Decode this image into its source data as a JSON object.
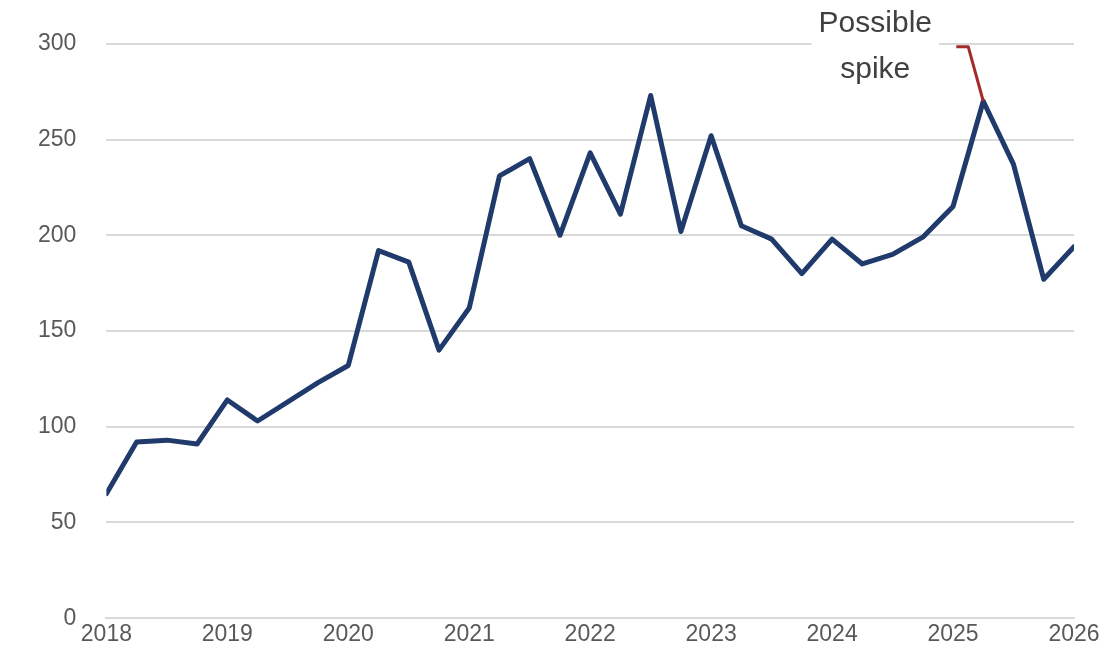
{
  "chart_data": {
    "type": "line",
    "x": [
      2018,
      2018.25,
      2018.5,
      2018.75,
      2019,
      2019.25,
      2019.5,
      2019.75,
      2020,
      2020.25,
      2020.5,
      2020.75,
      2021,
      2021.25,
      2021.5,
      2021.75,
      2022,
      2022.25,
      2022.5,
      2022.75,
      2023,
      2023.25,
      2023.5,
      2023.75,
      2024,
      2024.25,
      2024.5,
      2024.75,
      2025,
      2025.25,
      2025.5,
      2025.75,
      2026
    ],
    "series": [
      {
        "color": "#1f3a6b",
        "values": [
          65,
          92,
          93,
          91,
          114,
          103,
          113,
          123,
          132,
          192,
          186,
          140,
          162,
          231,
          240,
          200,
          243,
          211,
          273,
          202,
          252,
          205,
          198,
          180,
          198,
          185,
          190,
          199,
          215,
          270,
          237,
          177,
          194
        ]
      }
    ],
    "xlim": [
      2018,
      2026
    ],
    "xticks": [
      2018,
      2019,
      2020,
      2021,
      2022,
      2023,
      2024,
      2025,
      2026
    ],
    "ylim": [
      0,
      300
    ],
    "yticks": [
      0,
      50,
      100,
      150,
      200,
      250,
      300
    ],
    "grid": "y",
    "legend": false,
    "marker": "none",
    "line_style": "solid",
    "annotations": [
      {
        "text": "Possible\nspike",
        "x": 2025.25,
        "y": 270
      }
    ]
  }
}
